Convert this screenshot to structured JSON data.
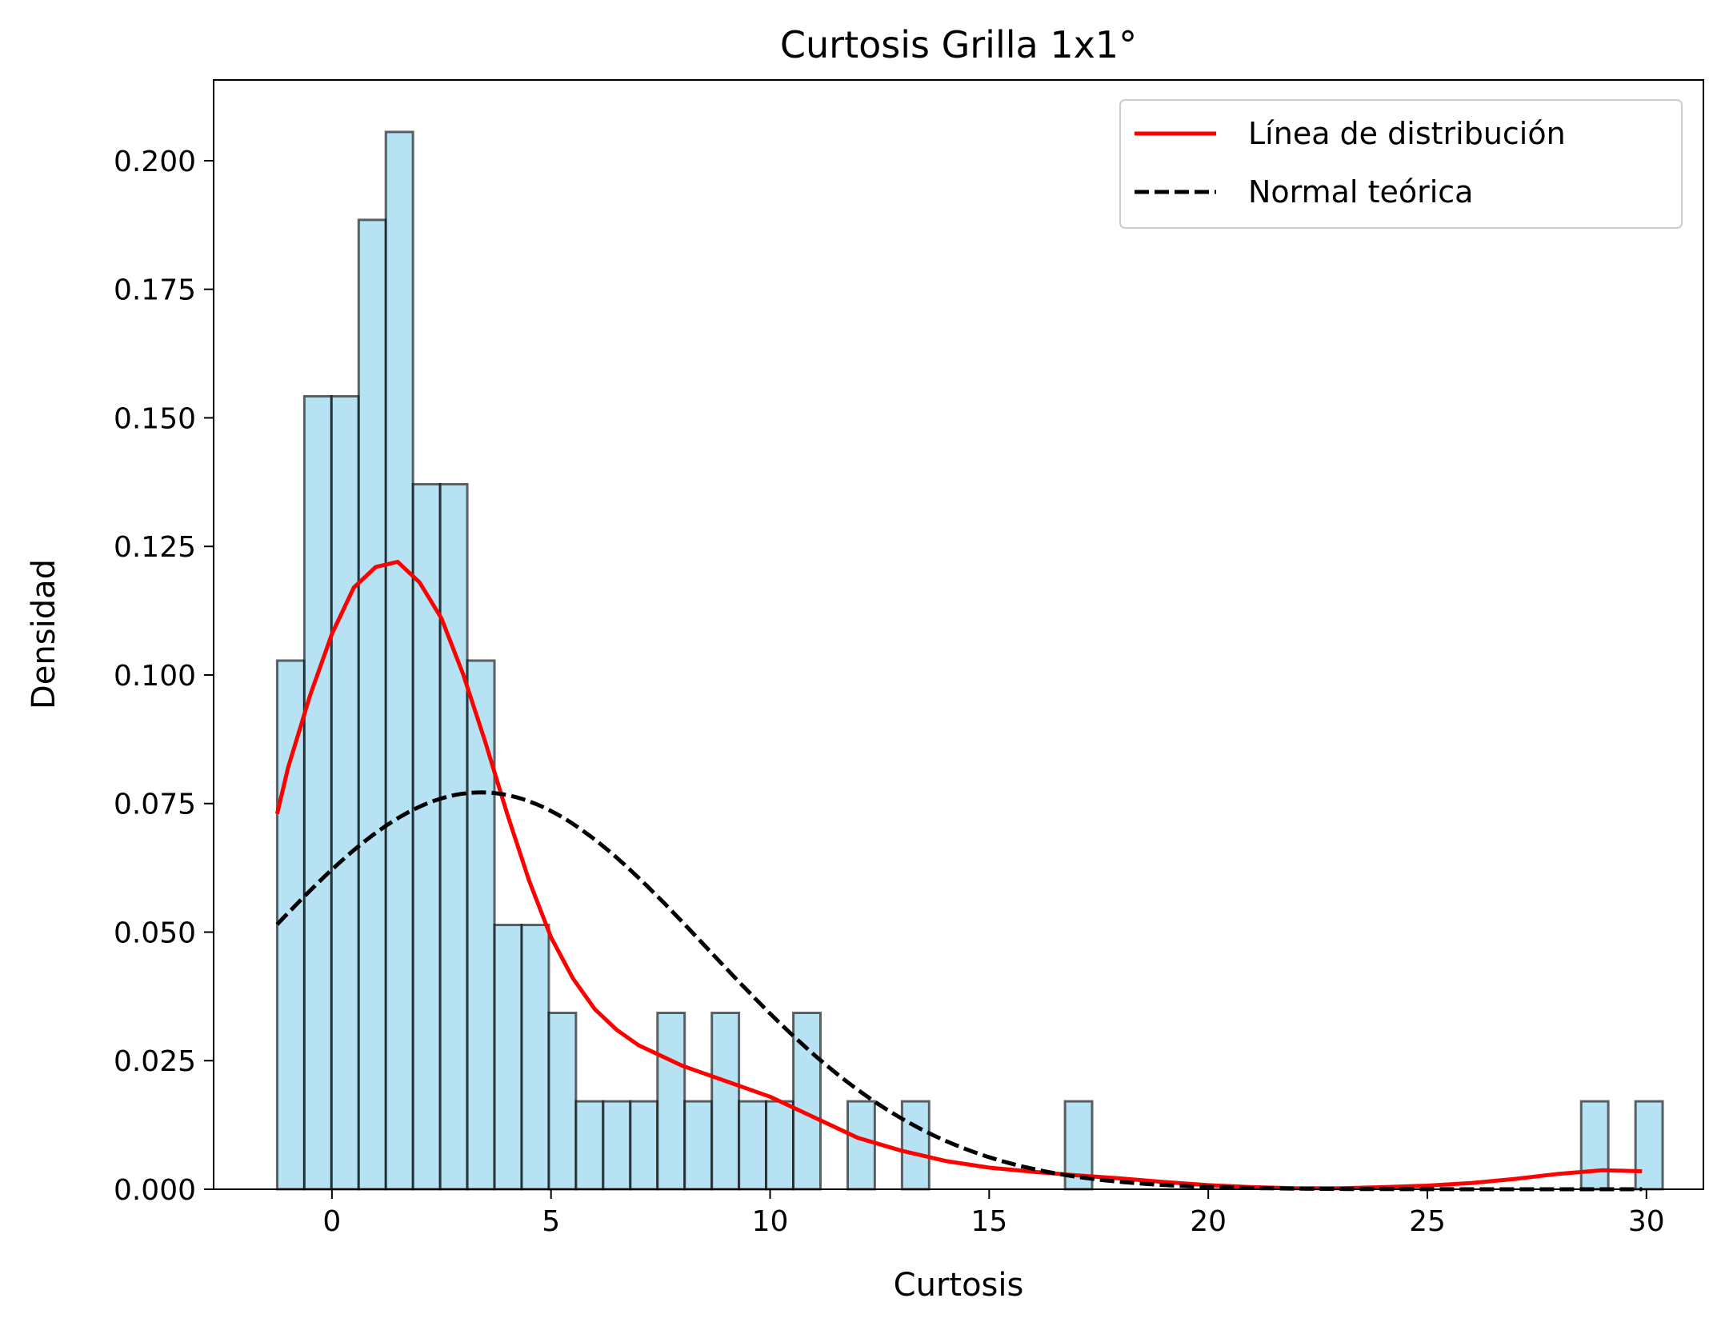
{
  "chart_data": {
    "type": "histogram",
    "title": "Curtosis Grilla 1x1°",
    "xlabel": "Curtosis",
    "ylabel": "Densidad",
    "xlim": [
      -2.7,
      31.3
    ],
    "ylim": [
      0,
      0.2157
    ],
    "x_ticks": [
      0,
      5,
      10,
      15,
      20,
      25,
      30
    ],
    "y_ticks": [
      0.0,
      0.025,
      0.05,
      0.075,
      0.1,
      0.125,
      0.15,
      0.175,
      0.2
    ],
    "y_tick_labels": [
      "0.000",
      "0.025",
      "0.050",
      "0.075",
      "0.100",
      "0.125",
      "0.150",
      "0.175",
      "0.200"
    ],
    "histogram": {
      "bin_start": -1.25,
      "bin_width": 0.62,
      "fill_color": "#87ceeb",
      "edge_color": "#000000",
      "densities": [
        0.1028,
        0.1542,
        0.1542,
        0.1885,
        0.2056,
        0.1371,
        0.1371,
        0.1028,
        0.0514,
        0.0514,
        0.0343,
        0.0171,
        0.0171,
        0.0171,
        0.0343,
        0.0171,
        0.0343,
        0.0171,
        0.0171,
        0.0343,
        0,
        0.0171,
        0,
        0.0171,
        0,
        0,
        0,
        0,
        0,
        0.0171,
        0,
        0,
        0,
        0,
        0,
        0,
        0,
        0,
        0,
        0,
        0,
        0,
        0,
        0,
        0,
        0,
        0,
        0,
        0.0171,
        0,
        0.0171
      ]
    },
    "series": [
      {
        "name": "Línea de distribución",
        "style": "solid",
        "color": "#ff0000",
        "x": [
          -1.25,
          -1.0,
          -0.5,
          0,
          0.5,
          1.0,
          1.5,
          2.0,
          2.5,
          3.0,
          3.5,
          4.0,
          4.5,
          5.0,
          5.5,
          6.0,
          6.5,
          7.0,
          7.5,
          8.0,
          9.0,
          10.0,
          11.0,
          12.0,
          13.0,
          14.0,
          15.0,
          16.0,
          17.0,
          18.0,
          19.0,
          20.0,
          21.0,
          22.0,
          23.0,
          24.0,
          25.0,
          26.0,
          27.0,
          28.0,
          29.0,
          29.9
        ],
        "y": [
          0.073,
          0.082,
          0.096,
          0.108,
          0.117,
          0.121,
          0.122,
          0.118,
          0.111,
          0.1,
          0.087,
          0.073,
          0.06,
          0.049,
          0.041,
          0.035,
          0.031,
          0.028,
          0.026,
          0.024,
          0.021,
          0.018,
          0.014,
          0.01,
          0.0075,
          0.0055,
          0.0042,
          0.0034,
          0.0027,
          0.0021,
          0.0014,
          0.0008,
          0.0004,
          0.0002,
          0.0002,
          0.0004,
          0.0007,
          0.0012,
          0.002,
          0.003,
          0.0037,
          0.0035
        ]
      },
      {
        "name": "Normal teórica",
        "style": "dashed",
        "color": "#000000",
        "mean": 3.4,
        "std": 5.17,
        "x_range": [
          -1.25,
          29.9
        ]
      }
    ],
    "legend": {
      "position": "top-right"
    },
    "grid": false
  }
}
